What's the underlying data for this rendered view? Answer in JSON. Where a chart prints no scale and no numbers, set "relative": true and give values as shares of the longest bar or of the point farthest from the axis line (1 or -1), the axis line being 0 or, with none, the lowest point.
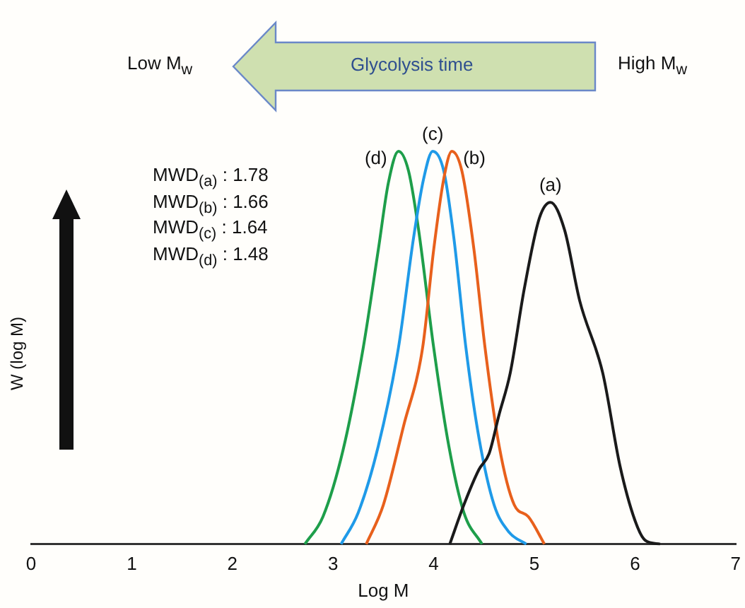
{
  "chart_data": {
    "type": "line",
    "relative": true,
    "xlabel": "Log M",
    "ylabel": "W (log M)",
    "xlim": [
      0,
      7
    ],
    "xticks": [
      0,
      1,
      2,
      3,
      4,
      5,
      6,
      7
    ],
    "grid": false,
    "legend": false,
    "marker": "none",
    "line_style": "solid",
    "annotations": [
      "Low M$_{w}$",
      "Glycolysis time",
      "High M$_{w}$",
      "MWD$_{(a)}$ : 1.78",
      "MWD$_{(b)}$ : 1.66",
      "MWD$_{(c)}$ : 1.64",
      "MWD$_{(d)}$ : 1.48"
    ],
    "series": [
      {
        "name": "(a)",
        "color": "#1a1a1a",
        "x": [
          4.16,
          4.3,
          4.45,
          4.55,
          4.65,
          4.76,
          4.9,
          5.05,
          5.16,
          5.3,
          5.45,
          5.68,
          5.85,
          6.0,
          6.1,
          6.25
        ],
        "values": [
          0,
          0.1,
          0.19,
          0.23,
          0.33,
          0.435,
          0.65,
          0.83,
          0.87,
          0.8,
          0.62,
          0.435,
          0.2,
          0.06,
          0.01,
          0
        ]
      },
      {
        "name": "(b)",
        "color": "#e8601c",
        "x": [
          3.33,
          3.5,
          3.7,
          3.89,
          4.0,
          4.1,
          4.18,
          4.28,
          4.4,
          4.51,
          4.65,
          4.8,
          4.94,
          5.1
        ],
        "values": [
          0,
          0.1,
          0.3,
          0.5,
          0.75,
          0.93,
          1,
          0.95,
          0.75,
          0.5,
          0.25,
          0.1,
          0.07,
          0
        ]
      },
      {
        "name": "(c)",
        "color": "#1f9ae8",
        "x": [
          3.08,
          3.25,
          3.45,
          3.65,
          3.8,
          3.9,
          3.99,
          4.1,
          4.2,
          4.32,
          4.45,
          4.6,
          4.75,
          4.92
        ],
        "values": [
          0,
          0.08,
          0.25,
          0.5,
          0.78,
          0.93,
          1,
          0.95,
          0.78,
          0.5,
          0.27,
          0.1,
          0.03,
          0
        ]
      },
      {
        "name": "(d)",
        "color": "#1e9e4a",
        "x": [
          2.72,
          2.9,
          3.1,
          3.3,
          3.45,
          3.55,
          3.65,
          3.75,
          3.85,
          4.0,
          4.15,
          4.3,
          4.48
        ],
        "values": [
          0,
          0.07,
          0.24,
          0.5,
          0.75,
          0.92,
          1,
          0.95,
          0.8,
          0.5,
          0.25,
          0.08,
          0
        ]
      }
    ]
  }
}
